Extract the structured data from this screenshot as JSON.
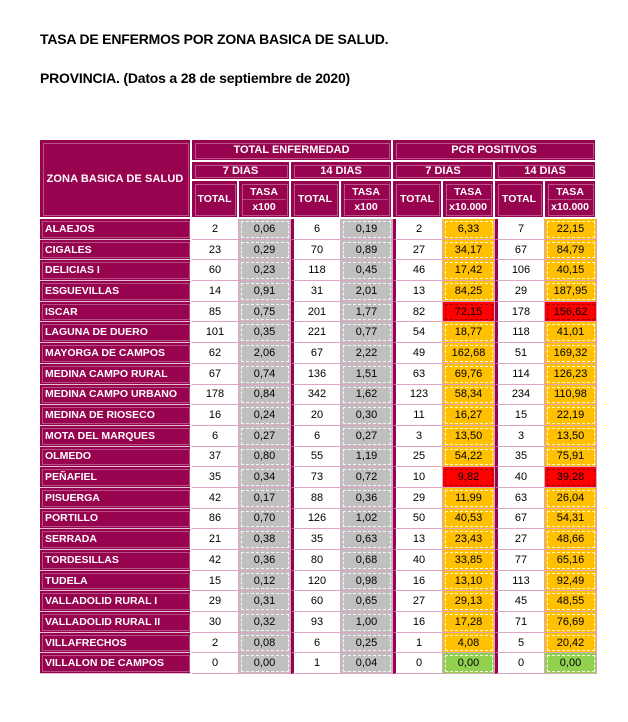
{
  "page": {
    "title_line1": "TASA DE ENFERMOS POR ZONA BASICA DE SALUD.",
    "title_line2": "PROVINCIA. (Datos a 28 de septiembre de 2020)"
  },
  "colors": {
    "header_bg": "#97034F",
    "border_pink": "#DFA3C5",
    "gray_fill": "#BFBFBF",
    "orange_fill": "#FFC000",
    "red_fill": "#FF0000",
    "green_fill": "#92D050",
    "page_bg": "#FFFFFF",
    "text_dark": "#000000",
    "text_light": "#FFFFFF"
  },
  "table": {
    "header": {
      "zone": "ZONA BASICA DE SALUD",
      "group_enfermedad": "TOTAL ENFERMEDAD",
      "group_pcr": "PCR POSITIVOS",
      "period_7": "7 DIAS",
      "period_14": "14 DIAS",
      "total": "TOTAL",
      "tasa": "TASA",
      "x100": "x100",
      "x10000": "x10.000"
    },
    "rows": [
      {
        "zone": "ALAEJOS",
        "values": [
          "2",
          "0,06",
          "6",
          "0,19",
          "2",
          "6,33",
          "7",
          "22,15"
        ],
        "pcr7_level": "orange",
        "pcr14_level": "orange"
      },
      {
        "zone": "CIGALES",
        "values": [
          "23",
          "0,29",
          "70",
          "0,89",
          "27",
          "34,17",
          "67",
          "84,79"
        ],
        "pcr7_level": "orange",
        "pcr14_level": "orange"
      },
      {
        "zone": "DELICIAS I",
        "values": [
          "60",
          "0,23",
          "118",
          "0,45",
          "46",
          "17,42",
          "106",
          "40,15"
        ],
        "pcr7_level": "orange",
        "pcr14_level": "orange"
      },
      {
        "zone": "ESGUEVILLAS",
        "values": [
          "14",
          "0,91",
          "31",
          "2,01",
          "13",
          "84,25",
          "29",
          "187,95"
        ],
        "pcr7_level": "orange",
        "pcr14_level": "orange"
      },
      {
        "zone": "ISCAR",
        "values": [
          "85",
          "0,75",
          "201",
          "1,77",
          "82",
          "72,15",
          "178",
          "156,62"
        ],
        "pcr7_level": "red",
        "pcr14_level": "red"
      },
      {
        "zone": "LAGUNA DE DUERO",
        "values": [
          "101",
          "0,35",
          "221",
          "0,77",
          "54",
          "18,77",
          "118",
          "41,01"
        ],
        "pcr7_level": "orange",
        "pcr14_level": "orange"
      },
      {
        "zone": "MAYORGA DE CAMPOS",
        "values": [
          "62",
          "2,06",
          "67",
          "2,22",
          "49",
          "162,68",
          "51",
          "169,32"
        ],
        "pcr7_level": "orange",
        "pcr14_level": "orange"
      },
      {
        "zone": "MEDINA CAMPO RURAL",
        "values": [
          "67",
          "0,74",
          "136",
          "1,51",
          "63",
          "69,76",
          "114",
          "126,23"
        ],
        "pcr7_level": "orange",
        "pcr14_level": "orange"
      },
      {
        "zone": "MEDINA CAMPO URBANO",
        "values": [
          "178",
          "0,84",
          "342",
          "1,62",
          "123",
          "58,34",
          "234",
          "110,98"
        ],
        "pcr7_level": "orange",
        "pcr14_level": "orange"
      },
      {
        "zone": "MEDINA DE RIOSECO",
        "values": [
          "16",
          "0,24",
          "20",
          "0,30",
          "11",
          "16,27",
          "15",
          "22,19"
        ],
        "pcr7_level": "orange",
        "pcr14_level": "orange"
      },
      {
        "zone": "MOTA DEL MARQUES",
        "values": [
          "6",
          "0,27",
          "6",
          "0,27",
          "3",
          "13,50",
          "3",
          "13,50"
        ],
        "pcr7_level": "orange",
        "pcr14_level": "orange"
      },
      {
        "zone": "OLMEDO",
        "values": [
          "37",
          "0,80",
          "55",
          "1,19",
          "25",
          "54,22",
          "35",
          "75,91"
        ],
        "pcr7_level": "orange",
        "pcr14_level": "orange"
      },
      {
        "zone": "PEÑAFIEL",
        "values": [
          "35",
          "0,34",
          "73",
          "0,72",
          "10",
          "9,82",
          "40",
          "39,28"
        ],
        "pcr7_level": "red",
        "pcr14_level": "red"
      },
      {
        "zone": "PISUERGA",
        "values": [
          "42",
          "0,17",
          "88",
          "0,36",
          "29",
          "11,99",
          "63",
          "26,04"
        ],
        "pcr7_level": "orange",
        "pcr14_level": "orange"
      },
      {
        "zone": "PORTILLO",
        "values": [
          "86",
          "0,70",
          "126",
          "1,02",
          "50",
          "40,53",
          "67",
          "54,31"
        ],
        "pcr7_level": "orange",
        "pcr14_level": "orange"
      },
      {
        "zone": "SERRADA",
        "values": [
          "21",
          "0,38",
          "35",
          "0,63",
          "13",
          "23,43",
          "27",
          "48,66"
        ],
        "pcr7_level": "orange",
        "pcr14_level": "orange"
      },
      {
        "zone": "TORDESILLAS",
        "values": [
          "42",
          "0,36",
          "80",
          "0,68",
          "40",
          "33,85",
          "77",
          "65,16"
        ],
        "pcr7_level": "orange",
        "pcr14_level": "orange"
      },
      {
        "zone": "TUDELA",
        "values": [
          "15",
          "0,12",
          "120",
          "0,98",
          "16",
          "13,10",
          "113",
          "92,49"
        ],
        "pcr7_level": "orange",
        "pcr14_level": "orange"
      },
      {
        "zone": "VALLADOLID RURAL I",
        "values": [
          "29",
          "0,31",
          "60",
          "0,65",
          "27",
          "29,13",
          "45",
          "48,55"
        ],
        "pcr7_level": "orange",
        "pcr14_level": "orange"
      },
      {
        "zone": "VALLADOLID RURAL II",
        "values": [
          "30",
          "0,32",
          "93",
          "1,00",
          "16",
          "17,28",
          "71",
          "76,69"
        ],
        "pcr7_level": "orange",
        "pcr14_level": "orange"
      },
      {
        "zone": "VILLAFRECHOS",
        "values": [
          "2",
          "0,08",
          "6",
          "0,25",
          "1",
          "4,08",
          "5",
          "20,42"
        ],
        "pcr7_level": "orange",
        "pcr14_level": "orange"
      },
      {
        "zone": "VILLALON DE CAMPOS",
        "values": [
          "0",
          "0,00",
          "1",
          "0,04",
          "0",
          "0,00",
          "0",
          "0,00"
        ],
        "pcr7_level": "green",
        "pcr14_level": "green"
      }
    ]
  }
}
